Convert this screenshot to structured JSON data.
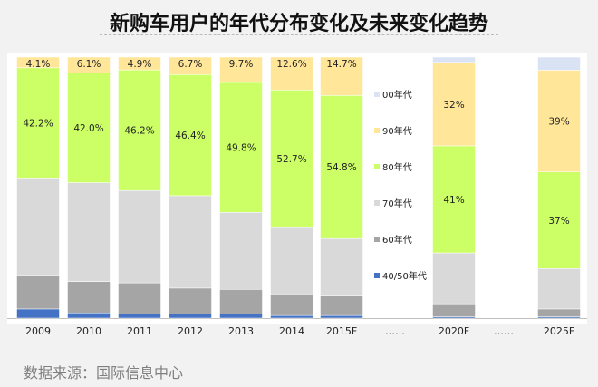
{
  "page": {
    "title": "新购车用户的年代分布变化及未来变化趋势",
    "source": "数据来源：国际信息中心"
  },
  "chart_data": {
    "type": "bar",
    "stacked": true,
    "normalized": true,
    "categories": [
      "2009",
      "2010",
      "2011",
      "2012",
      "2013",
      "2014",
      "2015F",
      "……",
      "2020F",
      "……",
      "2025F"
    ],
    "series": [
      {
        "name": "40/50年代",
        "color": "#4472c4",
        "values": [
          3.5,
          2.0,
          1.5,
          1.5,
          1.5,
          1.0,
          1.0,
          null,
          0.5,
          null,
          0.5
        ]
      },
      {
        "name": "60年代",
        "color": "#a5a5a5",
        "values": [
          13.0,
          12.0,
          12.0,
          10.0,
          9.5,
          8.0,
          7.5,
          null,
          5.0,
          null,
          3.0
        ]
      },
      {
        "name": "70年代",
        "color": "#d9d9d9",
        "values": [
          37.2,
          37.9,
          35.4,
          35.4,
          29.5,
          25.7,
          22.0,
          null,
          19.5,
          null,
          15.5
        ]
      },
      {
        "name": "80年代",
        "color": "#ccff66",
        "values": [
          42.2,
          42.0,
          46.2,
          46.4,
          49.8,
          52.7,
          54.8,
          null,
          41,
          null,
          37
        ]
      },
      {
        "name": "90年代",
        "color": "#ffe699",
        "values": [
          4.1,
          6.1,
          4.9,
          6.7,
          9.7,
          12.6,
          14.7,
          null,
          32,
          null,
          39
        ]
      },
      {
        "name": "00年代",
        "color": "#dae3f3",
        "values": [
          0,
          0,
          0,
          0,
          0,
          0,
          0,
          null,
          2.0,
          null,
          5.0
        ]
      }
    ],
    "data_labels": {
      "80年代": [
        "42.2%",
        "42.0%",
        "46.2%",
        "46.4%",
        "49.8%",
        "52.7%",
        "54.8%",
        null,
        "41%",
        null,
        "37%"
      ],
      "90年代": [
        "4.1%",
        "6.1%",
        "4.9%",
        "6.7%",
        "9.7%",
        "12.6%",
        "14.7%",
        null,
        "32%",
        null,
        "39%"
      ]
    },
    "legend_order": [
      "00年代",
      "90年代",
      "80年代",
      "70年代",
      "60年代",
      "40/50年代"
    ],
    "legend_position": "right",
    "grid": false,
    "ylim": [
      0,
      100
    ]
  }
}
